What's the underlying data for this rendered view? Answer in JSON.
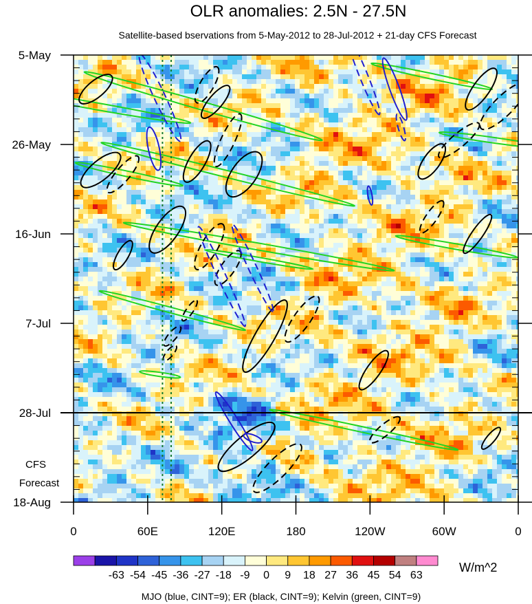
{
  "chart_data": {
    "type": "heatmap",
    "title": "OLR anomalies: 2.5N - 27.5N",
    "subtitle": "Satellite-based bservations from 5-May-2012 to 28-Jul-2012 + 21-day CFS Forecast",
    "x_tick_labels": [
      "0",
      "60E",
      "120E",
      "180",
      "120W",
      "60W",
      "0"
    ],
    "x_ticks_lon": [
      0,
      60,
      120,
      180,
      240,
      300,
      360
    ],
    "xlim": [
      0,
      360
    ],
    "y_tick_labels": [
      "5-May",
      "26-May",
      "16-Jun",
      "7-Jul",
      "28-Jul",
      "18-Aug"
    ],
    "y_ticks_day": [
      0,
      21,
      42,
      63,
      84,
      105
    ],
    "ylim_days": [
      0,
      105
    ],
    "observation_end_label": "28-Jul",
    "forecast_label": [
      "CFS",
      "Forecast"
    ],
    "colorbar": {
      "labels": [
        "-63",
        "-54",
        "-45",
        "-36",
        "-27",
        "-18",
        "-9",
        "0",
        "9",
        "18",
        "27",
        "36",
        "45",
        "54",
        "63"
      ],
      "colors": [
        "#9b3fe8",
        "#1a14a8",
        "#1f34c7",
        "#2e62d8",
        "#3694ea",
        "#3dc2f0",
        "#a7d3f3",
        "#d9f3fb",
        "#fffed8",
        "#ffe97f",
        "#ffc632",
        "#ff9a00",
        "#fc5a00",
        "#e01010",
        "#b40000",
        "#c08080",
        "#ff8ad0"
      ],
      "units": "W/m^2"
    },
    "overlays": {
      "legend_text": "MJO (blue, CINT=9); ER (black, CINT=9); Kelvin (green, CINT=9)",
      "mjo_color": "#1f1fd0",
      "er_color": "#000000",
      "kelvin_color": "#22d422",
      "reference_lines_lon": [
        72,
        79
      ],
      "reference_line_color": "#157a2e"
    }
  }
}
